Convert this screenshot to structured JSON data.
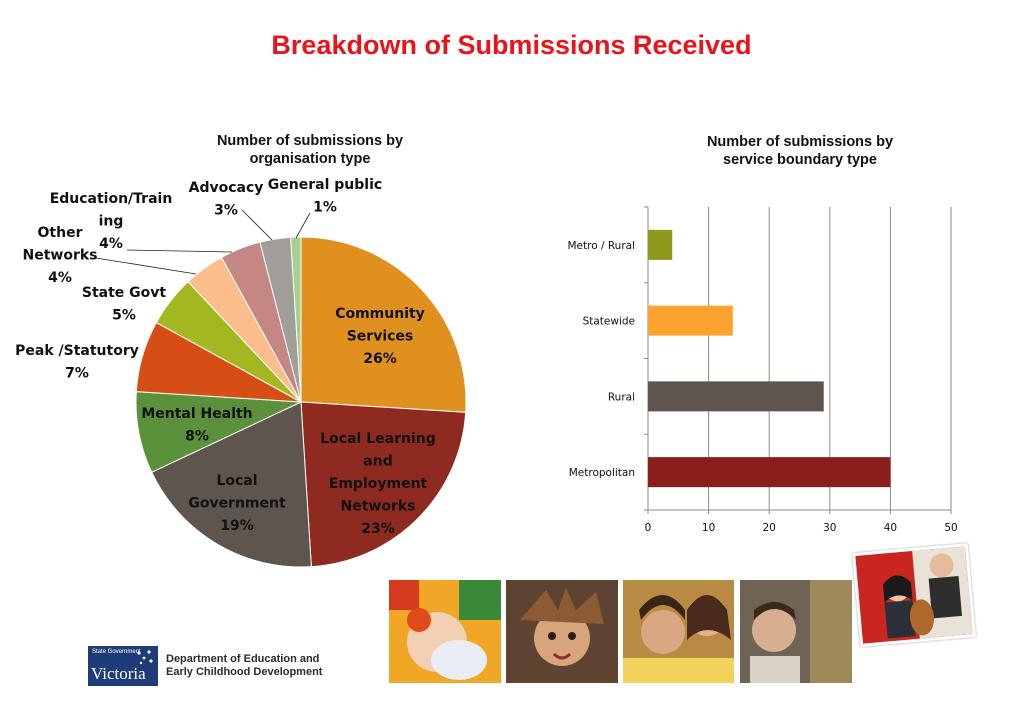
{
  "page": {
    "title": "Breakdown of Submissions Received"
  },
  "chart_data": [
    {
      "type": "pie",
      "title": "Number of submissions by organisation type",
      "slices": [
        {
          "label": "Community Services",
          "value": 26,
          "display": "26%",
          "color": "#e0901f"
        },
        {
          "label": "Local Learning and Employment Networks",
          "value": 23,
          "display": "23%",
          "color": "#8e2a1f"
        },
        {
          "label": "Local Government",
          "value": 19,
          "display": "19%",
          "color": "#5e554e"
        },
        {
          "label": "Mental Health",
          "value": 8,
          "display": "8%",
          "color": "#5a913a"
        },
        {
          "label": "Peak /Statutory",
          "value": 7,
          "display": "7%",
          "color": "#d74d16"
        },
        {
          "label": "State Govt",
          "value": 5,
          "display": "5%",
          "color": "#a3b820"
        },
        {
          "label": "Other Networks",
          "value": 4,
          "display": "4%",
          "color": "#fbbd8c"
        },
        {
          "label": "Education/Training",
          "value": 4,
          "display": "4%",
          "color": "#c58784"
        },
        {
          "label": "Advocacy",
          "value": 3,
          "display": "3%",
          "color": "#a19d99"
        },
        {
          "label": "General public",
          "value": 1,
          "display": "1%",
          "color": "#a5cf8d"
        }
      ],
      "legend": "none"
    },
    {
      "type": "bar",
      "orientation": "horizontal",
      "title": "Number of submissions by service boundary type",
      "categories": [
        "Metro / Rural",
        "Statewide",
        "Rural",
        "Metropolitan"
      ],
      "values": [
        4,
        14,
        29,
        40
      ],
      "colors": [
        "#8c991a",
        "#fba32e",
        "#5e554e",
        "#8a1f1a"
      ],
      "xlim": [
        0,
        50
      ],
      "xticks": [
        0,
        10,
        20,
        30,
        40,
        50
      ],
      "grid": true,
      "legend": "none"
    }
  ],
  "footer": {
    "logo_small": "State Government",
    "logo_big": "Victoria",
    "dept_line1": "Department of Education and",
    "dept_line2": "Early Childhood Development"
  }
}
